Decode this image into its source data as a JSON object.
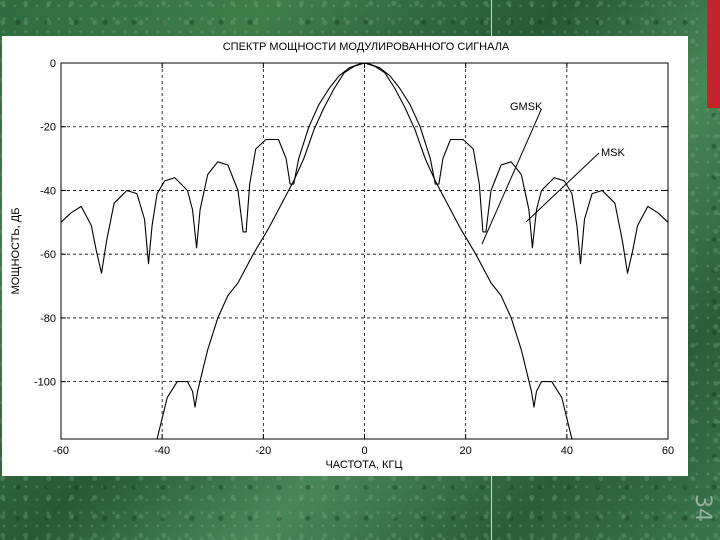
{
  "slide": {
    "page_number": "34"
  },
  "chart_data": {
    "type": "line",
    "title": "СПЕКТР МОЩНОСТИ МОДУЛИРОВАННОГО СИГНАЛА",
    "xlabel": "ЧАСТОТА, КГЦ",
    "ylabel": "МОЩНОСТЬ, ДБ",
    "xlim": [
      -60,
      60
    ],
    "ylim": [
      -118,
      0
    ],
    "x_ticks": [
      -60,
      -40,
      -20,
      0,
      20,
      40,
      60
    ],
    "y_ticks": [
      0,
      -20,
      -40,
      -60,
      -80,
      -100
    ],
    "grid": true,
    "annotations": [
      "GMSK",
      "MSK"
    ],
    "series": [
      {
        "name": "MSK",
        "x": [
          -60,
          -58,
          -56,
          -54,
          -53,
          -52,
          -51,
          -49.5,
          -47,
          -45,
          -43.5,
          -42.7,
          -42,
          -41,
          -39.5,
          -37.5,
          -35,
          -34,
          -33.2,
          -32.5,
          -31,
          -29,
          -27,
          -25,
          -24,
          -23.4,
          -22.7,
          -21.5,
          -19.5,
          -17,
          -15.5,
          -14.7,
          -14,
          -13,
          -11,
          -9,
          -7,
          -5,
          -3,
          -1,
          0,
          1,
          3,
          5,
          7,
          9,
          11,
          13,
          14,
          14.7,
          15.5,
          17,
          19.5,
          21.5,
          22.7,
          23.4,
          24,
          25,
          27,
          29,
          31,
          32.5,
          33.2,
          34,
          35,
          37.5,
          39.5,
          41,
          42,
          42.7,
          43.5,
          45,
          47,
          49.5,
          51,
          52,
          53,
          54,
          56,
          58,
          60
        ],
        "y": [
          -50,
          -47,
          -45,
          -51,
          -59,
          -66,
          -56,
          -44,
          -40,
          -41,
          -49,
          -63,
          -51,
          -41,
          -37,
          -36,
          -40,
          -46,
          -58,
          -46,
          -35,
          -31,
          -32,
          -40,
          -53,
          -53,
          -38,
          -27,
          -24,
          -24,
          -30,
          -38,
          -38,
          -30,
          -20,
          -13,
          -8,
          -4,
          -1.5,
          -0.3,
          0,
          -0.3,
          -1.5,
          -4,
          -8,
          -13,
          -20,
          -30,
          -38,
          -38,
          -30,
          -24,
          -24,
          -27,
          -38,
          -53,
          -53,
          -40,
          -32,
          -31,
          -35,
          -46,
          -58,
          -46,
          -40,
          -36,
          -37,
          -41,
          -51,
          -63,
          -49,
          -41,
          -40,
          -44,
          -56,
          -66,
          -59,
          -51,
          -45,
          -47,
          -50
        ]
      },
      {
        "name": "GMSK",
        "x": [
          -41,
          -39,
          -37,
          -35,
          -34,
          -33.5,
          -33,
          -31,
          -29,
          -27,
          -25,
          -22,
          -19,
          -17,
          -14,
          -12,
          -10,
          -8,
          -6,
          -4,
          -2,
          0,
          2,
          4,
          6,
          8,
          10,
          12,
          14,
          17,
          19,
          22,
          25,
          27,
          29,
          31,
          33,
          33.5,
          34,
          35,
          37,
          39,
          41
        ],
        "y": [
          -118,
          -105,
          -100,
          -100,
          -103,
          -108,
          -103,
          -90,
          -80,
          -73,
          -69,
          -60,
          -52,
          -46,
          -37,
          -30,
          -21,
          -14,
          -8,
          -3,
          -1,
          0,
          -1,
          -3,
          -8,
          -14,
          -21,
          -30,
          -37,
          -46,
          -52,
          -60,
          -69,
          -73,
          -80,
          -90,
          -103,
          -108,
          -103,
          -100,
          -100,
          -105,
          -118
        ]
      }
    ]
  }
}
